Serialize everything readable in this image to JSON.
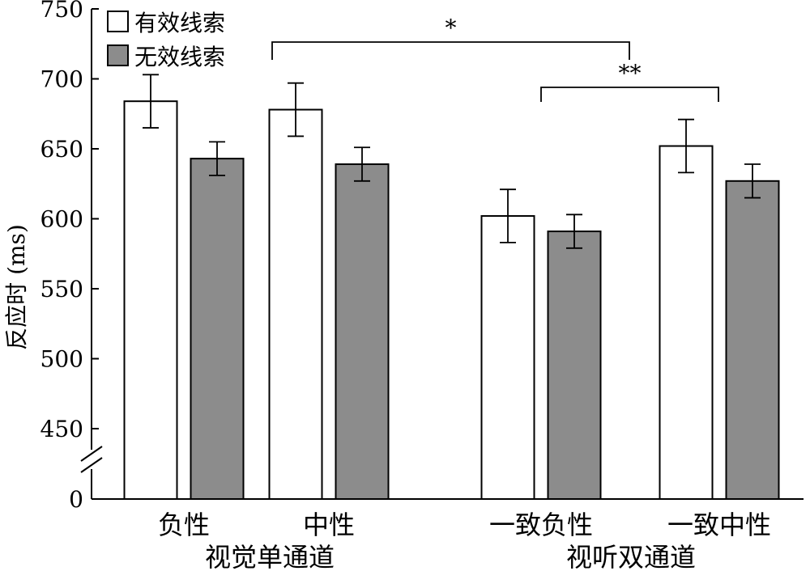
{
  "chart_data": {
    "type": "bar",
    "ylabel": "反应时 (ms)",
    "ylim": [
      450,
      750
    ],
    "y_ticks": [
      "0",
      "450",
      "500",
      "550",
      "600",
      "650",
      "700",
      "750"
    ],
    "axis_break": true,
    "categories": [
      "负性",
      "中性",
      "一致负性",
      "一致中性"
    ],
    "groups": [
      {
        "label": "视觉单通道",
        "categories": [
          "负性",
          "中性"
        ]
      },
      {
        "label": "视听双通道",
        "categories": [
          "一致负性",
          "一致中性"
        ]
      }
    ],
    "series": [
      {
        "name": "有效线索",
        "color": "#ffffff",
        "values": [
          684,
          678,
          602,
          652
        ],
        "errors": [
          19,
          19,
          19,
          19
        ]
      },
      {
        "name": "无效线索",
        "color": "#8c8c8c",
        "values": [
          643,
          639,
          591,
          627
        ],
        "errors": [
          12,
          12,
          12,
          12
        ]
      }
    ],
    "legend_position": "top-left",
    "grid": false,
    "significance": [
      {
        "label": "*",
        "from": "负性",
        "to": "一致负性"
      },
      {
        "label": "**",
        "from": "一致负性",
        "to": "一致中性"
      }
    ]
  }
}
